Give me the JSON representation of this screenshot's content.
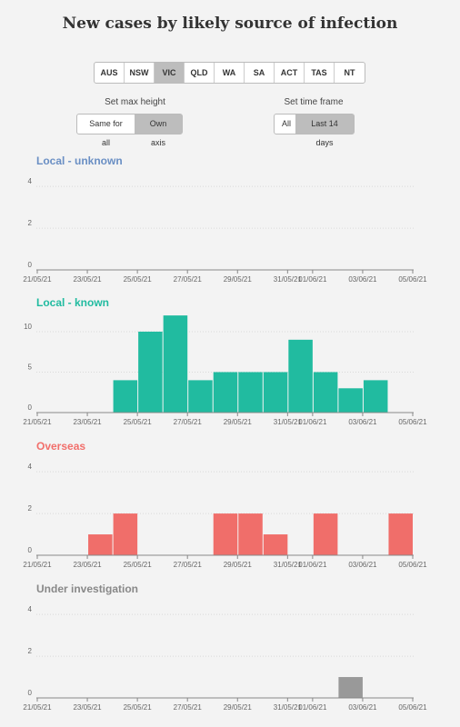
{
  "title": "New cases by likely source of infection",
  "states": {
    "options": [
      "AUS",
      "NSW",
      "VIC",
      "QLD",
      "WA",
      "SA",
      "ACT",
      "TAS",
      "NT"
    ],
    "selected": "VIC"
  },
  "max_height": {
    "label": "Set max height",
    "options": [
      "Same for all",
      "Own axis"
    ],
    "selected": "Own axis"
  },
  "time_frame": {
    "label": "Set time frame",
    "options": [
      "All",
      "Last 14 days"
    ],
    "selected": "Last 14 days"
  },
  "chart_data": [
    {
      "type": "bar",
      "title": "Local - unknown",
      "color": "#6a8fc4",
      "bar_color": "#6a8fc4",
      "ylim": [
        0,
        4.4
      ],
      "yticks": [
        0,
        2,
        4
      ],
      "categories": [
        "21/05/21",
        "22/05/21",
        "23/05/21",
        "24/05/21",
        "25/05/21",
        "26/05/21",
        "27/05/21",
        "28/05/21",
        "29/05/21",
        "30/05/21",
        "31/05/21",
        "01/06/21",
        "02/06/21",
        "03/06/21",
        "04/06/21",
        "05/06/21"
      ],
      "values": [
        0,
        0,
        0,
        0,
        0,
        0,
        0,
        0,
        0,
        0,
        0,
        0,
        0,
        0,
        0,
        0
      ],
      "xtick_labels": [
        "21/05/21",
        "23/05/21",
        "25/05/21",
        "27/05/21",
        "29/05/21",
        "31/05/21",
        "01/06/21",
        "03/06/21",
        "05/06/21"
      ]
    },
    {
      "type": "bar",
      "title": "Local - known",
      "color": "#21bba0",
      "bar_color": "#21bba0",
      "ylim": [
        0,
        12.8
      ],
      "yticks": [
        0,
        5,
        10
      ],
      "categories": [
        "21/05/21",
        "22/05/21",
        "23/05/21",
        "24/05/21",
        "25/05/21",
        "26/05/21",
        "27/05/21",
        "28/05/21",
        "29/05/21",
        "30/05/21",
        "31/05/21",
        "01/06/21",
        "02/06/21",
        "03/06/21",
        "04/06/21",
        "05/06/21"
      ],
      "values": [
        0,
        0,
        0,
        0,
        4,
        10,
        12,
        4,
        5,
        5,
        5,
        9,
        5,
        3,
        4,
        0
      ],
      "xtick_labels": [
        "21/05/21",
        "23/05/21",
        "25/05/21",
        "27/05/21",
        "29/05/21",
        "31/05/21",
        "01/06/21",
        "03/06/21",
        "05/06/21"
      ]
    },
    {
      "type": "bar",
      "title": "Overseas",
      "color": "#f26f6b",
      "bar_color": "#f06e6a",
      "ylim": [
        0,
        4.4
      ],
      "yticks": [
        0,
        2,
        4
      ],
      "categories": [
        "21/05/21",
        "22/05/21",
        "23/05/21",
        "24/05/21",
        "25/05/21",
        "26/05/21",
        "27/05/21",
        "28/05/21",
        "29/05/21",
        "30/05/21",
        "31/05/21",
        "01/06/21",
        "02/06/21",
        "03/06/21",
        "04/06/21",
        "05/06/21"
      ],
      "values": [
        0,
        0,
        0,
        1,
        2,
        0,
        0,
        0,
        2,
        2,
        1,
        0,
        2,
        0,
        0,
        2
      ],
      "xtick_labels": [
        "21/05/21",
        "23/05/21",
        "25/05/21",
        "27/05/21",
        "29/05/21",
        "31/05/21",
        "01/06/21",
        "03/06/21",
        "05/06/21"
      ]
    },
    {
      "type": "bar",
      "title": "Under investigation",
      "color": "#888888",
      "bar_color": "#999999",
      "ylim": [
        0,
        4.4
      ],
      "yticks": [
        0,
        2,
        4
      ],
      "categories": [
        "21/05/21",
        "22/05/21",
        "23/05/21",
        "24/05/21",
        "25/05/21",
        "26/05/21",
        "27/05/21",
        "28/05/21",
        "29/05/21",
        "30/05/21",
        "31/05/21",
        "01/06/21",
        "02/06/21",
        "03/06/21",
        "04/06/21",
        "05/06/21"
      ],
      "values": [
        0,
        0,
        0,
        0,
        0,
        0,
        0,
        0,
        0,
        0,
        0,
        0,
        0,
        1,
        0,
        0
      ],
      "xtick_labels": [
        "21/05/21",
        "23/05/21",
        "25/05/21",
        "27/05/21",
        "29/05/21",
        "31/05/21",
        "01/06/21",
        "03/06/21",
        "05/06/21"
      ]
    }
  ]
}
